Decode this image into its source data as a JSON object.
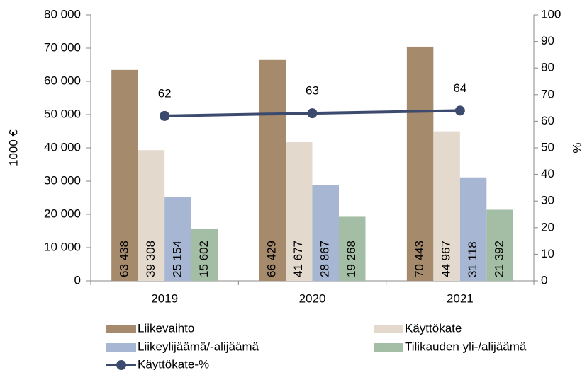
{
  "chart_data": {
    "type": "bar",
    "categories": [
      "2019",
      "2020",
      "2021"
    ],
    "ylabel": "1000 €",
    "y2label": "%",
    "ylim": [
      0,
      80000
    ],
    "yticks": [
      0,
      {
        "value": 10000,
        "label": "10 000"
      },
      {
        "value": 20000,
        "label": "20 000"
      },
      {
        "value": 30000,
        "label": "30 000"
      },
      {
        "value": 40000,
        "label": "40 000"
      },
      {
        "value": 50000,
        "label": "50 000"
      },
      {
        "value": 60000,
        "label": "60 000"
      },
      {
        "value": 70000,
        "label": "70 000"
      },
      {
        "value": 80000,
        "label": "80 000"
      }
    ],
    "y2lim": [
      0,
      100
    ],
    "y2ticks": [
      0,
      10,
      20,
      30,
      40,
      50,
      60,
      70,
      80,
      90,
      100
    ],
    "grid": false,
    "series": [
      {
        "name": "Liikevaihto",
        "type": "bar",
        "color": "#a58a6c",
        "values": [
          63438,
          66429,
          70443
        ],
        "value_labels": [
          "63 438",
          "66 429",
          "70 443"
        ]
      },
      {
        "name": "Käyttökate",
        "type": "bar",
        "color": "#e3d9cc",
        "values": [
          39308,
          41677,
          44967
        ],
        "value_labels": [
          "39 308",
          "41 677",
          "44 967"
        ]
      },
      {
        "name": "Liikeylijäämä/-alijäämä",
        "type": "bar",
        "color": "#a7b6d2",
        "values": [
          25154,
          28867,
          31118
        ],
        "value_labels": [
          "25 154",
          "28 867",
          "31 118"
        ]
      },
      {
        "name": "Tilikauden yli-/alijäämä",
        "type": "bar",
        "color": "#a3bea4",
        "values": [
          15602,
          19268,
          21392
        ],
        "value_labels": [
          "15 602",
          "19 268",
          "21 392"
        ]
      },
      {
        "name": "Käyttökate-%",
        "type": "line",
        "axis": "y2",
        "color": "#3c4a6e",
        "values": [
          62,
          63,
          64
        ]
      }
    ]
  }
}
